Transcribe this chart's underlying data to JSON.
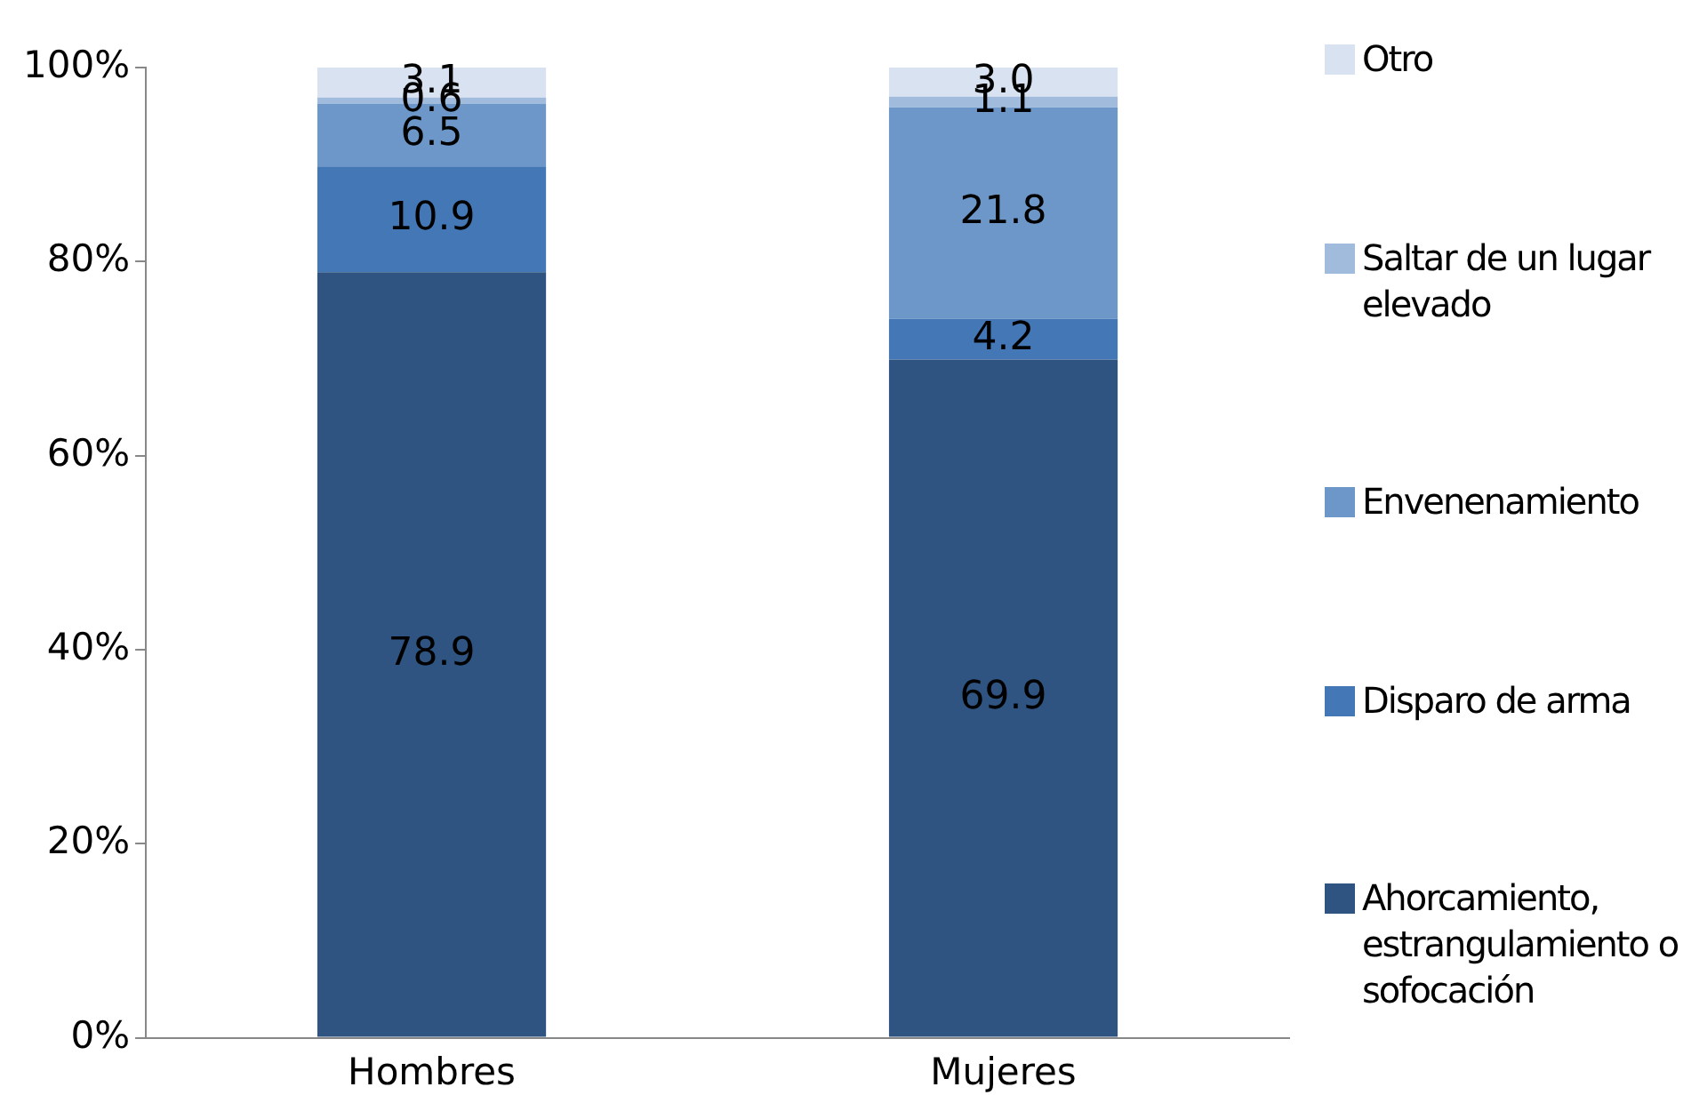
{
  "chart_data": {
    "type": "bar",
    "stacked": true,
    "categories": [
      "Hombres",
      "Mujeres"
    ],
    "series": [
      {
        "name": "Ahorcamiento, estrangulamiento o sofocación",
        "color": "#2f5481",
        "values": [
          78.9,
          69.9
        ],
        "value_labels": [
          "78.9",
          "69.9"
        ]
      },
      {
        "name": "Disparo de arma",
        "color": "#4477b6",
        "values": [
          10.9,
          4.2
        ],
        "value_labels": [
          "10.9",
          "4.2"
        ]
      },
      {
        "name": "Envenenamiento",
        "color": "#6d97c9",
        "values": [
          6.5,
          21.8
        ],
        "value_labels": [
          "6.5",
          "21.8"
        ]
      },
      {
        "name": "Saltar de un lugar elevado",
        "color": "#a1bbdd",
        "values": [
          0.6,
          1.1
        ],
        "value_labels": [
          "0.6",
          "1.1"
        ]
      },
      {
        "name": "Otro",
        "color": "#d8e2f0",
        "values": [
          3.1,
          3.0
        ],
        "value_labels": [
          "3.1",
          "3.0"
        ]
      }
    ],
    "ylim": [
      0,
      100
    ],
    "yticks": [
      {
        "value": 0,
        "label": "0%"
      },
      {
        "value": 20,
        "label": "20%"
      },
      {
        "value": 40,
        "label": "40%"
      },
      {
        "value": 60,
        "label": "60%"
      },
      {
        "value": 80,
        "label": "80%"
      },
      {
        "value": 100,
        "label": "100%"
      }
    ],
    "grid": false,
    "legend": "right"
  }
}
